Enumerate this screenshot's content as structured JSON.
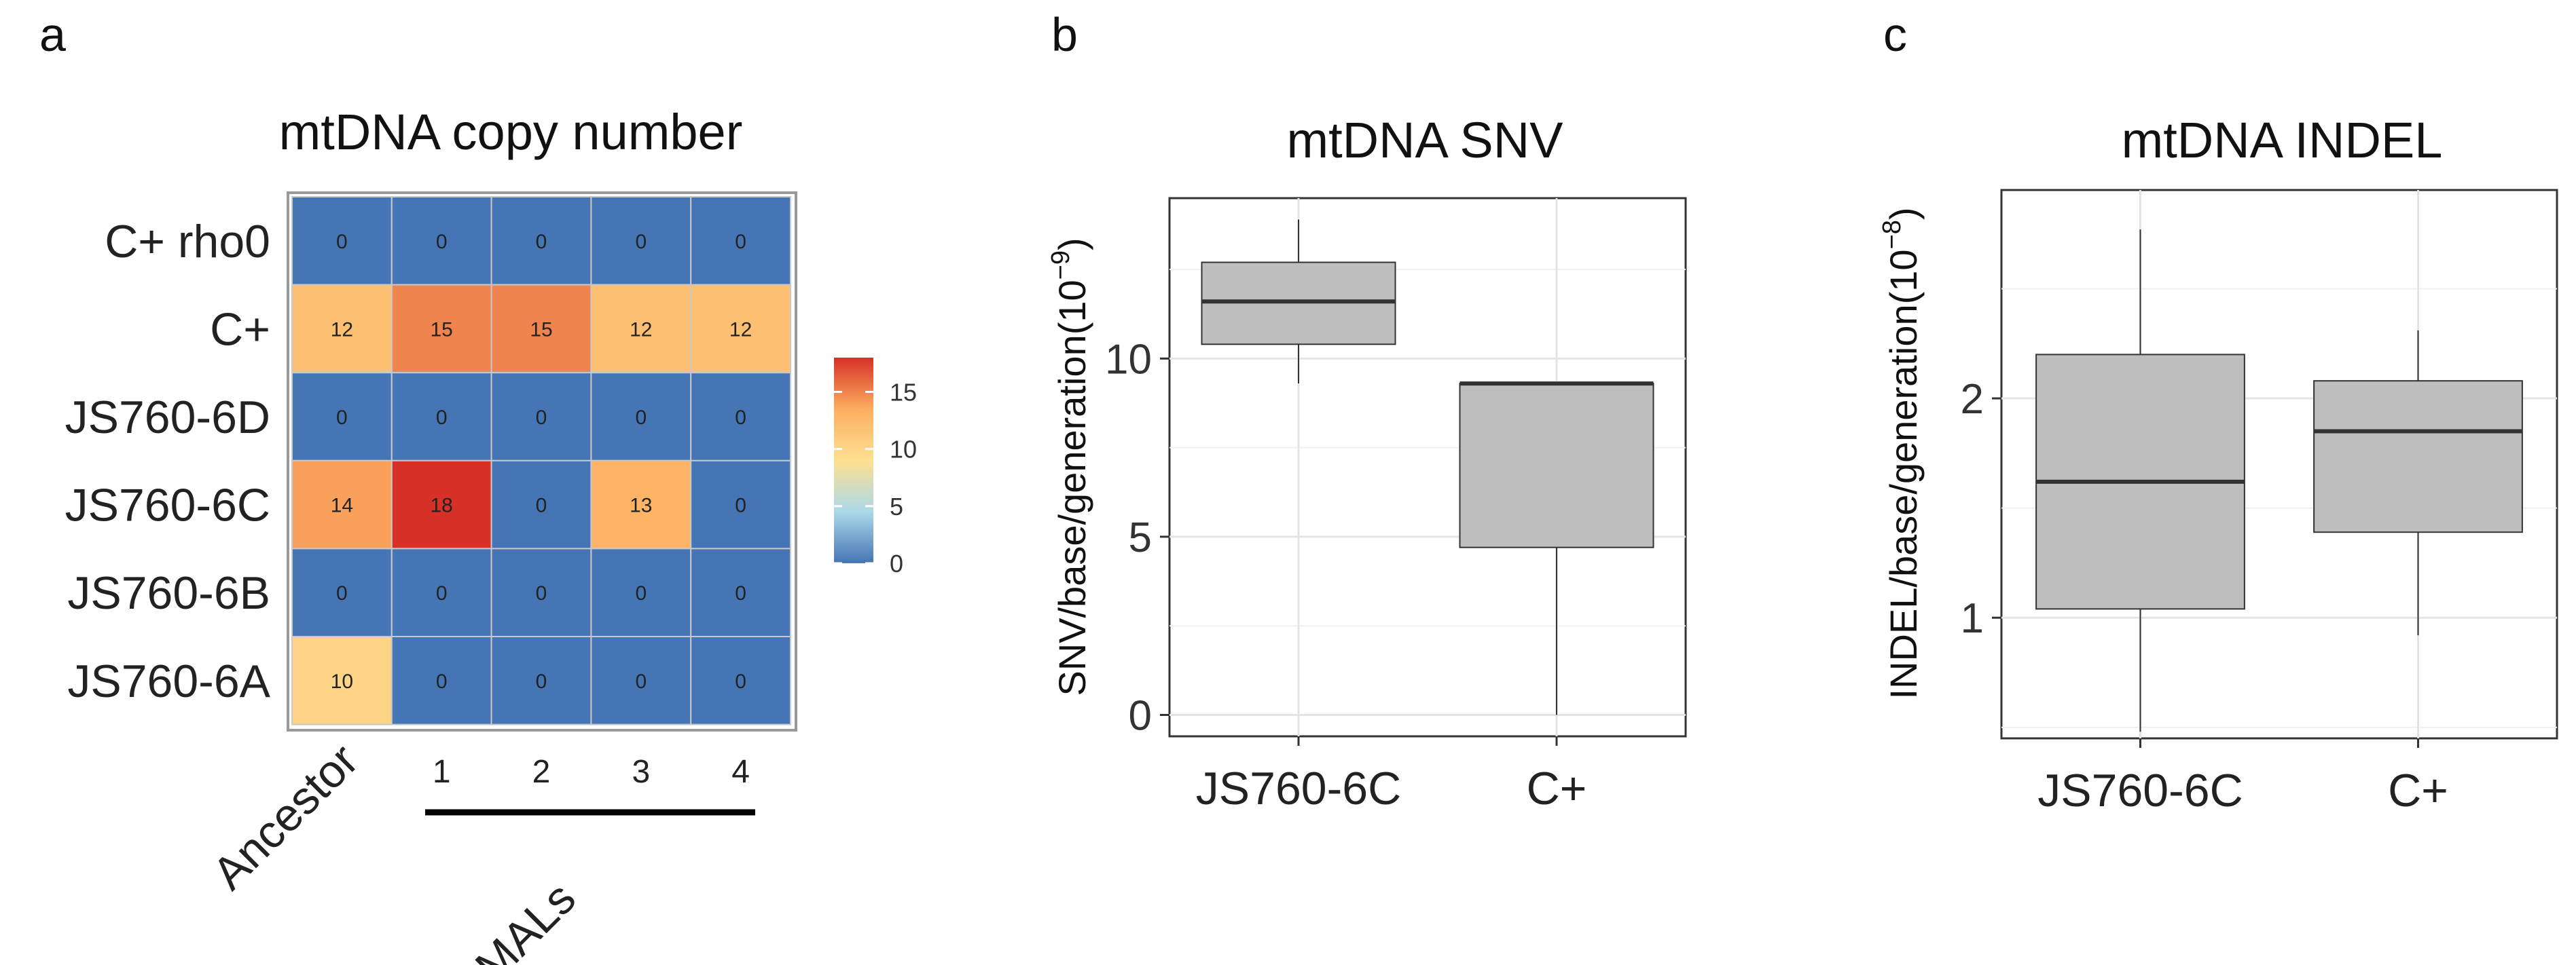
{
  "panel_labels": [
    "a",
    "b",
    "c"
  ],
  "chart_data": [
    {
      "type": "heatmap",
      "title": "mtDNA copy number",
      "rows": [
        "C+ rho0",
        "C+",
        "JS760-6D",
        "JS760-6C",
        "JS760-6B",
        "JS760-6A"
      ],
      "columns": [
        "Ancestor",
        "1",
        "2",
        "3",
        "4"
      ],
      "values": [
        [
          0,
          0,
          0,
          0,
          0
        ],
        [
          12,
          15,
          15,
          12,
          12
        ],
        [
          0,
          0,
          0,
          0,
          0
        ],
        [
          14,
          18,
          0,
          13,
          0
        ],
        [
          0,
          0,
          0,
          0,
          0
        ],
        [
          10,
          0,
          0,
          0,
          0
        ]
      ],
      "group_label": "MALs",
      "legend": {
        "ticks": [
          0,
          5,
          10,
          15
        ],
        "range": [
          0,
          18
        ],
        "colors": [
          "#4575b4",
          "#abd9e9",
          "#fee090",
          "#fdae61",
          "#d73027"
        ]
      }
    },
    {
      "type": "box",
      "title": "mtDNA SNV",
      "ylabel": "SNV/base/generation(10",
      "ylabel_exp": "−9",
      "ylim": [
        -0.6,
        14.5
      ],
      "yticks": [
        0,
        5,
        10
      ],
      "categories": [
        "JS760-6C",
        "C+"
      ],
      "boxes": [
        {
          "name": "JS760-6C",
          "min": 9.3,
          "q1": 10.4,
          "median": 11.6,
          "q3": 12.7,
          "max": 13.9
        },
        {
          "name": "C+",
          "min": 0.0,
          "q1": 4.7,
          "median": 9.3,
          "q3": 9.3,
          "max": 9.3
        }
      ]
    },
    {
      "type": "box",
      "title": "mtDNA INDEL",
      "ylabel": "INDEL/base/generation(10",
      "ylabel_exp": "−8",
      "ylim": [
        0.45,
        2.95
      ],
      "yticks": [
        1,
        2
      ],
      "categories": [
        "JS760-6C",
        "C+"
      ],
      "boxes": [
        {
          "name": "JS760-6C",
          "min": 0.48,
          "q1": 1.04,
          "median": 1.62,
          "q3": 2.2,
          "max": 2.77
        },
        {
          "name": "C+",
          "min": 0.92,
          "q1": 1.39,
          "median": 1.85,
          "q3": 2.08,
          "max": 2.31
        }
      ]
    }
  ]
}
